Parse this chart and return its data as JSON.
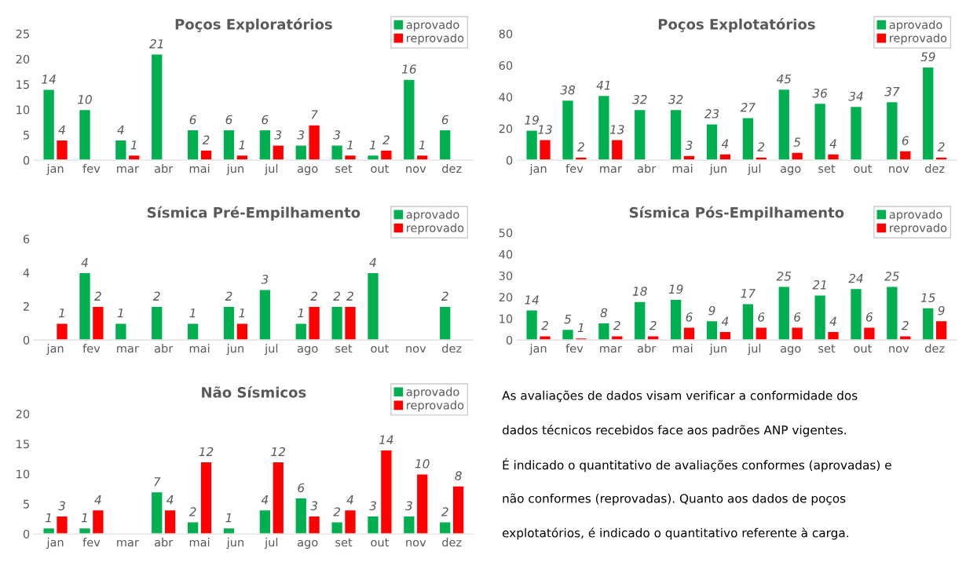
{
  "chart_data": [
    {
      "type": "bar",
      "title": "Poços Exploratórios",
      "categories": [
        "jan",
        "fev",
        "mar",
        "abr",
        "mai",
        "jun",
        "jul",
        "ago",
        "set",
        "out",
        "nov",
        "dez"
      ],
      "ylim": [
        0,
        25
      ],
      "yticks": [
        0,
        5,
        10,
        15,
        20,
        25
      ],
      "data_labels": true,
      "legend": "top right",
      "grid": false,
      "series": [
        {
          "name": "aprovado",
          "color": "#00b050",
          "values": [
            14,
            10,
            4,
            21,
            6,
            6,
            6,
            3,
            3,
            1,
            16,
            6
          ]
        },
        {
          "name": "reprovado",
          "color": "#ff0000",
          "values": [
            4,
            null,
            1,
            null,
            2,
            1,
            3,
            7,
            1,
            2,
            1,
            null
          ]
        }
      ]
    },
    {
      "type": "bar",
      "title": "Poços Explotatórios",
      "categories": [
        "jan",
        "fev",
        "mar",
        "abr",
        "mai",
        "jun",
        "jul",
        "ago",
        "set",
        "out",
        "nov",
        "dez"
      ],
      "ylim": [
        0,
        80
      ],
      "yticks": [
        0,
        20,
        40,
        60,
        80
      ],
      "data_labels": true,
      "legend": "top right",
      "grid": false,
      "series": [
        {
          "name": "aprovado",
          "color": "#00b050",
          "values": [
            19,
            38,
            41,
            32,
            32,
            23,
            27,
            45,
            36,
            34,
            37,
            59
          ]
        },
        {
          "name": "reprovado",
          "color": "#ff0000",
          "values": [
            13,
            2,
            13,
            null,
            3,
            4,
            2,
            5,
            4,
            null,
            6,
            2
          ]
        }
      ]
    },
    {
      "type": "bar",
      "title": "Sísmica Pré-Empilhamento",
      "categories": [
        "jan",
        "fev",
        "mar",
        "abr",
        "mai",
        "jun",
        "jul",
        "ago",
        "set",
        "out",
        "nov",
        "dez"
      ],
      "ylim": [
        0,
        7
      ],
      "yticks": [
        0,
        2,
        4,
        6
      ],
      "data_labels": true,
      "legend": "top right",
      "grid": false,
      "series": [
        {
          "name": "aprovado",
          "color": "#00b050",
          "values": [
            null,
            4,
            1,
            2,
            1,
            2,
            3,
            1,
            2,
            4,
            null,
            2
          ]
        },
        {
          "name": "reprovado",
          "color": "#ff0000",
          "values": [
            1,
            2,
            null,
            null,
            null,
            1,
            null,
            2,
            2,
            null,
            null,
            null
          ]
        }
      ]
    },
    {
      "type": "bar",
      "title": "Sísmica Pós-Empilhamento",
      "categories": [
        "jan",
        "fev",
        "mar",
        "abr",
        "mai",
        "jun",
        "jul",
        "ago",
        "set",
        "out",
        "nov",
        "dez"
      ],
      "ylim": [
        0,
        55
      ],
      "yticks": [
        0,
        10,
        20,
        30,
        40,
        50
      ],
      "data_labels": true,
      "legend": "top right",
      "grid": false,
      "series": [
        {
          "name": "aprovado",
          "color": "#00b050",
          "values": [
            14,
            5,
            8,
            18,
            19,
            9,
            17,
            25,
            21,
            24,
            25,
            15
          ]
        },
        {
          "name": "reprovado",
          "color": "#ff0000",
          "values": [
            2,
            1,
            2,
            2,
            6,
            4,
            6,
            6,
            4,
            6,
            2,
            9
          ]
        }
      ]
    },
    {
      "type": "bar",
      "title": "Não Sísmicos",
      "categories": [
        "jan",
        "fev",
        "mar",
        "abr",
        "mai",
        "jun",
        "jul",
        "ago",
        "set",
        "out",
        "nov",
        "dez"
      ],
      "ylim": [
        0,
        22
      ],
      "yticks": [
        0,
        5,
        10,
        15,
        20
      ],
      "data_labels": true,
      "legend": "top right",
      "grid": false,
      "series": [
        {
          "name": "aprovado",
          "color": "#00b050",
          "values": [
            1,
            1,
            null,
            7,
            2,
            1,
            4,
            6,
            2,
            3,
            3,
            2
          ]
        },
        {
          "name": "reprovado",
          "color": "#ff0000",
          "values": [
            3,
            4,
            null,
            4,
            12,
            null,
            12,
            3,
            4,
            14,
            10,
            8
          ]
        }
      ]
    },
    {
      "type": "other",
      "annotations": [
        "As avaliações de dados visam verificar a conformidade dos",
        "dados técnicos recebidos face aos padrões ANP vigentes.",
        "É indicado o quantitativo de avaliações conformes (aprovadas) e",
        "não conformes (reprovadas). Quanto aos dados de poços",
        "explotatórios, é indicado o quantitativo referente à carga."
      ]
    }
  ]
}
